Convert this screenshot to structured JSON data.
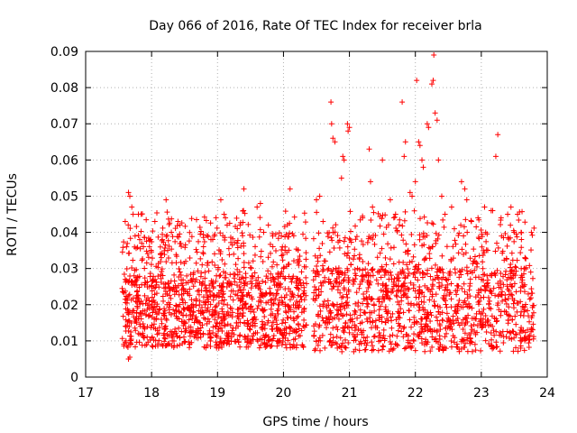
{
  "chart_data": {
    "type": "scatter",
    "title": "Day 066 of 2016, Rate Of TEC Index for receiver brla",
    "xlabel": "GPS time / hours",
    "ylabel": "ROTI / TECUs",
    "xlim": [
      17,
      24
    ],
    "ylim": [
      0,
      0.09
    ],
    "xticks": [
      17,
      18,
      19,
      20,
      21,
      22,
      23,
      24
    ],
    "xtick_labels": [
      "17",
      "18",
      "19",
      "20",
      "21",
      "22",
      "23",
      "24"
    ],
    "yticks": [
      0,
      0.01,
      0.02,
      0.03,
      0.04,
      0.05,
      0.06,
      0.07,
      0.08,
      0.09
    ],
    "ytick_labels": [
      "0",
      "0.01",
      "0.02",
      "0.03",
      "0.04",
      "0.05",
      "0.06",
      "0.07",
      "0.08",
      "0.09"
    ],
    "grid": true,
    "marker": "+",
    "color": "#ff0000",
    "series": [
      {
        "name": "ROTI",
        "segments": [
          {
            "x_range": [
              17.55,
              20.35
            ],
            "base_range": [
              0.008,
              0.028
            ],
            "note": "dense band"
          },
          {
            "x_range": [
              20.45,
              23.8
            ],
            "base_range": [
              0.007,
              0.03
            ],
            "note": "dense band"
          }
        ],
        "points": [
          [
            17.65,
            0.051
          ],
          [
            17.67,
            0.05
          ],
          [
            17.7,
            0.047
          ],
          [
            17.72,
            0.045
          ],
          [
            17.6,
            0.043
          ],
          [
            17.62,
            0.036
          ],
          [
            17.8,
            0.045
          ],
          [
            17.75,
            0.039
          ],
          [
            17.82,
            0.038
          ],
          [
            17.85,
            0.037
          ],
          [
            17.65,
            0.005
          ],
          [
            17.67,
            0.0055
          ],
          [
            18.05,
            0.043
          ],
          [
            18.22,
            0.049
          ],
          [
            18.4,
            0.043
          ],
          [
            18.43,
            0.042
          ],
          [
            18.3,
            0.04
          ],
          [
            18.9,
            0.038
          ],
          [
            18.95,
            0.039
          ],
          [
            19.05,
            0.049
          ],
          [
            19.1,
            0.045
          ],
          [
            19.12,
            0.044
          ],
          [
            19.4,
            0.052
          ],
          [
            19.6,
            0.047
          ],
          [
            19.65,
            0.048
          ],
          [
            19.3,
            0.041
          ],
          [
            19.7,
            0.04
          ],
          [
            20.1,
            0.052
          ],
          [
            20.0,
            0.03
          ],
          [
            19.9,
            0.031
          ],
          [
            20.5,
            0.049
          ],
          [
            20.55,
            0.05
          ],
          [
            20.6,
            0.043
          ],
          [
            20.72,
            0.076
          ],
          [
            20.73,
            0.07
          ],
          [
            20.75,
            0.066
          ],
          [
            20.78,
            0.065
          ],
          [
            20.9,
            0.061
          ],
          [
            20.92,
            0.06
          ],
          [
            20.88,
            0.055
          ],
          [
            20.97,
            0.07
          ],
          [
            20.98,
            0.068
          ],
          [
            21.0,
            0.069
          ],
          [
            21.2,
            0.044
          ],
          [
            21.3,
            0.063
          ],
          [
            21.32,
            0.054
          ],
          [
            21.35,
            0.047
          ],
          [
            21.5,
            0.06
          ],
          [
            21.62,
            0.049
          ],
          [
            21.7,
            0.045
          ],
          [
            21.8,
            0.076
          ],
          [
            21.83,
            0.061
          ],
          [
            21.85,
            0.065
          ],
          [
            21.92,
            0.051
          ],
          [
            21.95,
            0.05
          ],
          [
            22.0,
            0.054
          ],
          [
            22.02,
            0.082
          ],
          [
            22.05,
            0.065
          ],
          [
            22.07,
            0.064
          ],
          [
            22.1,
            0.06
          ],
          [
            22.12,
            0.058
          ],
          [
            22.18,
            0.07
          ],
          [
            22.2,
            0.069
          ],
          [
            22.25,
            0.081
          ],
          [
            22.27,
            0.082
          ],
          [
            22.28,
            0.089
          ],
          [
            22.3,
            0.073
          ],
          [
            22.33,
            0.071
          ],
          [
            22.35,
            0.06
          ],
          [
            22.4,
            0.05
          ],
          [
            22.45,
            0.045
          ],
          [
            22.55,
            0.047
          ],
          [
            22.7,
            0.054
          ],
          [
            22.75,
            0.052
          ],
          [
            22.78,
            0.049
          ],
          [
            22.85,
            0.043
          ],
          [
            22.95,
            0.044
          ],
          [
            23.05,
            0.047
          ],
          [
            23.15,
            0.046
          ],
          [
            23.22,
            0.061
          ],
          [
            23.25,
            0.067
          ],
          [
            23.3,
            0.044
          ],
          [
            23.4,
            0.045
          ],
          [
            23.45,
            0.047
          ],
          [
            23.5,
            0.04
          ],
          [
            23.55,
            0.045
          ],
          [
            23.65,
            0.03
          ],
          [
            23.75,
            0.029
          ]
        ]
      }
    ]
  }
}
